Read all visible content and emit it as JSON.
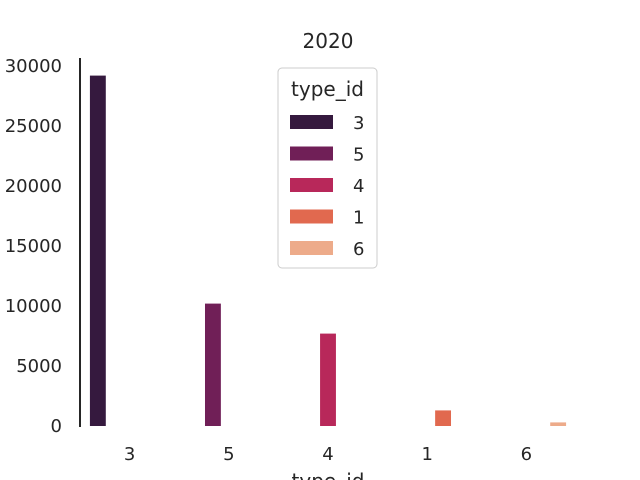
{
  "chart_data": {
    "type": "bar",
    "title": "2020",
    "xlabel": "type_id",
    "ylabel": "",
    "categories": [
      "3",
      "5",
      "4",
      "1",
      "6"
    ],
    "series": [
      {
        "values": [
          29200,
          0,
          0,
          0,
          0
        ],
        "color": "#35193e"
      },
      {
        "values": [
          0,
          10200,
          0,
          0,
          0
        ],
        "color": "#701f57"
      },
      {
        "values": [
          0,
          0,
          7700,
          0,
          0
        ],
        "color": "#ad1759"
      },
      {
        "values": [
          0,
          0,
          0,
          1300,
          0
        ],
        "color": "#e13342"
      },
      {
        "values": [
          0,
          0,
          0,
          0,
          300
        ],
        "color": "#f37651"
      }
    ],
    "bar_colors": [
      "#35193e",
      "#701f57",
      "#b8285a",
      "#e1694f",
      "#edab8a"
    ],
    "yticks": [
      0,
      5000,
      10000,
      15000,
      20000,
      25000,
      30000
    ],
    "ylim": [
      0,
      30000
    ],
    "grid": false,
    "legend": {
      "title": "type_id",
      "placement": "top-center",
      "entries": [
        "3",
        "5",
        "4",
        "1",
        "6"
      ]
    }
  }
}
